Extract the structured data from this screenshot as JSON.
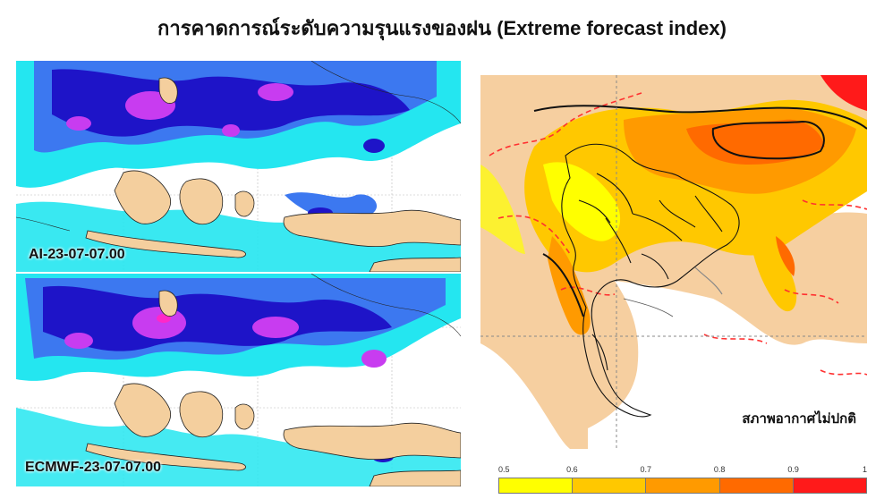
{
  "title": "การคาดการณ์ระดับความรุนแรงของฝน (Extreme forecast index)",
  "maps": {
    "ai": {
      "label": "AI-23-07-07.00"
    },
    "ecmwf": {
      "label": "ECMWF-23-07-07.00"
    },
    "efi": {
      "label": "สภาพอากาศไม่ปกติ"
    }
  },
  "colorbar": {
    "ticks": [
      "0.5",
      "0.6",
      "0.7",
      "0.8",
      "0.9",
      "1"
    ],
    "colors": [
      "#ffff00",
      "#ffc800",
      "#ff9a00",
      "#ff6a00",
      "#ff1a1a"
    ]
  },
  "map_colors": {
    "land": "#f4cf9e",
    "sea": "#ffffff",
    "rain_light": "#24e6f0",
    "rain_moderate": "#3c78f0",
    "rain_heavy": "#1e14c8",
    "rain_very_heavy": "#c83cf0",
    "rain_extreme": "#ff28c8"
  }
}
